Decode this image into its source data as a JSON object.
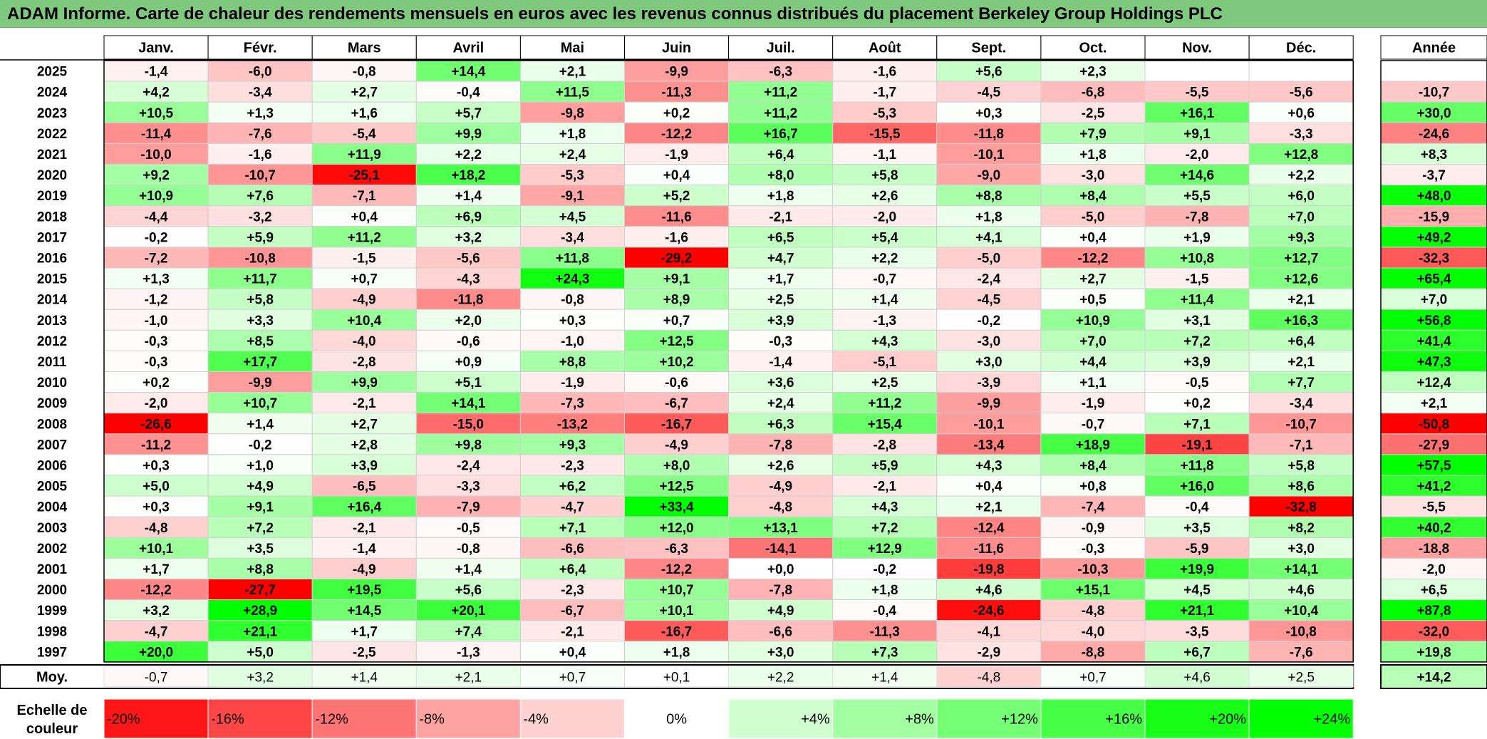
{
  "title": "ADAM Informe. Carte de chaleur des rendements mensuels en euros avec les revenus connus distribués du placement Berkeley Group Holdings PLC",
  "chart_data": {
    "type": "heatmap",
    "months": [
      "Janv.",
      "Févr.",
      "Mars",
      "Avril",
      "Mai",
      "Juin",
      "Juil.",
      "Août",
      "Sept.",
      "Oct.",
      "Nov.",
      "Déc."
    ],
    "year_label": "Année",
    "avg_label": "Moy.",
    "scale_label": "Echelle de couleur",
    "rows": [
      {
        "year": "2025",
        "values": [
          -1.4,
          -6.0,
          -0.8,
          14.4,
          2.1,
          -9.9,
          -6.3,
          -1.6,
          5.6,
          2.3,
          null,
          null
        ],
        "annual": null
      },
      {
        "year": "2024",
        "values": [
          4.2,
          -3.4,
          2.7,
          -0.4,
          11.5,
          -11.3,
          11.2,
          -1.7,
          -4.5,
          -6.8,
          -5.5,
          -5.6
        ],
        "annual": -10.7
      },
      {
        "year": "2023",
        "values": [
          10.5,
          1.3,
          1.6,
          5.7,
          -9.8,
          0.2,
          11.2,
          -5.3,
          0.3,
          -2.5,
          16.1,
          0.6
        ],
        "annual": 30.0
      },
      {
        "year": "2022",
        "values": [
          -11.4,
          -7.6,
          -5.4,
          9.9,
          1.8,
          -12.2,
          16.7,
          -15.5,
          -11.8,
          7.9,
          9.1,
          -3.3
        ],
        "annual": -24.6
      },
      {
        "year": "2021",
        "values": [
          -10.0,
          -1.6,
          11.9,
          2.2,
          2.4,
          -1.9,
          6.4,
          -1.1,
          -10.1,
          1.8,
          -2.0,
          12.8
        ],
        "annual": 8.3
      },
      {
        "year": "2020",
        "values": [
          9.2,
          -10.7,
          -25.1,
          18.2,
          -5.3,
          0.4,
          8.0,
          5.8,
          -9.0,
          -3.0,
          14.6,
          2.2
        ],
        "annual": -3.7
      },
      {
        "year": "2019",
        "values": [
          10.9,
          7.6,
          -7.1,
          1.4,
          -9.1,
          5.2,
          1.8,
          2.6,
          8.8,
          8.4,
          5.5,
          6.0
        ],
        "annual": 48.0
      },
      {
        "year": "2018",
        "values": [
          -4.4,
          -3.2,
          0.4,
          6.9,
          4.5,
          -11.6,
          -2.1,
          -2.0,
          1.8,
          -5.0,
          -7.8,
          7.0
        ],
        "annual": -15.9
      },
      {
        "year": "2017",
        "values": [
          -0.2,
          5.9,
          11.2,
          3.2,
          -3.4,
          -1.6,
          6.5,
          5.4,
          4.1,
          0.4,
          1.9,
          9.3
        ],
        "annual": 49.2
      },
      {
        "year": "2016",
        "values": [
          -7.2,
          -10.8,
          -1.5,
          -5.6,
          11.8,
          -29.2,
          4.7,
          2.2,
          -5.0,
          -12.2,
          10.8,
          12.7
        ],
        "annual": -32.3
      },
      {
        "year": "2015",
        "values": [
          1.3,
          11.7,
          0.7,
          -4.3,
          24.3,
          9.1,
          1.7,
          -0.7,
          -2.4,
          2.7,
          -1.5,
          12.6
        ],
        "annual": 65.4
      },
      {
        "year": "2014",
        "values": [
          -1.2,
          5.8,
          -4.9,
          -11.8,
          -0.8,
          8.9,
          2.5,
          1.4,
          -4.5,
          0.5,
          11.4,
          2.1
        ],
        "annual": 7.0
      },
      {
        "year": "2013",
        "values": [
          -1.0,
          3.3,
          10.4,
          2.0,
          0.3,
          0.7,
          3.9,
          -1.3,
          -0.2,
          10.9,
          3.1,
          16.3
        ],
        "annual": 56.8
      },
      {
        "year": "2012",
        "values": [
          -0.3,
          8.5,
          -4.0,
          -0.6,
          -1.0,
          12.5,
          -0.3,
          4.3,
          -3.0,
          7.0,
          7.2,
          6.4
        ],
        "annual": 41.4
      },
      {
        "year": "2011",
        "values": [
          -0.3,
          17.7,
          -2.8,
          0.9,
          8.8,
          10.2,
          -1.4,
          -5.1,
          3.0,
          4.4,
          3.9,
          2.1
        ],
        "annual": 47.3
      },
      {
        "year": "2010",
        "values": [
          0.2,
          -9.9,
          9.9,
          5.1,
          -1.9,
          -0.6,
          3.6,
          2.5,
          -3.9,
          1.1,
          -0.5,
          7.7
        ],
        "annual": 12.4
      },
      {
        "year": "2009",
        "values": [
          -2.0,
          10.7,
          -2.1,
          14.1,
          -7.3,
          -6.7,
          2.4,
          11.2,
          -9.9,
          -1.9,
          0.2,
          -3.4
        ],
        "annual": 2.1
      },
      {
        "year": "2008",
        "values": [
          -26.6,
          1.4,
          2.7,
          -15.0,
          -13.2,
          -16.7,
          6.3,
          15.4,
          -10.1,
          -0.7,
          7.1,
          -10.7
        ],
        "annual": -50.8
      },
      {
        "year": "2007",
        "values": [
          -11.2,
          -0.2,
          2.8,
          9.8,
          9.3,
          -4.9,
          -7.8,
          -2.8,
          -13.4,
          18.9,
          -19.1,
          -7.1
        ],
        "annual": -27.9
      },
      {
        "year": "2006",
        "values": [
          0.3,
          1.0,
          3.9,
          -2.4,
          -2.3,
          8.0,
          2.6,
          5.9,
          4.3,
          8.4,
          11.8,
          5.8
        ],
        "annual": 57.5
      },
      {
        "year": "2005",
        "values": [
          5.0,
          4.9,
          -6.5,
          -3.3,
          6.2,
          12.5,
          -4.9,
          -2.1,
          0.4,
          0.8,
          16.0,
          8.6
        ],
        "annual": 41.2
      },
      {
        "year": "2004",
        "values": [
          0.3,
          9.1,
          16.4,
          -7.9,
          -4.7,
          33.4,
          -4.8,
          4.3,
          2.1,
          -7.4,
          -0.4,
          -32.8
        ],
        "annual": -5.5
      },
      {
        "year": "2003",
        "values": [
          -4.8,
          7.2,
          -2.1,
          -0.5,
          7.1,
          12.0,
          13.1,
          7.2,
          -12.4,
          -0.9,
          3.5,
          8.2
        ],
        "annual": 40.2
      },
      {
        "year": "2002",
        "values": [
          10.1,
          3.5,
          -1.4,
          -0.8,
          -6.6,
          -6.3,
          -14.1,
          12.9,
          -11.6,
          -0.3,
          -5.9,
          3.0
        ],
        "annual": -18.8
      },
      {
        "year": "2001",
        "values": [
          1.7,
          8.8,
          -4.9,
          1.4,
          6.4,
          -12.2,
          0.0,
          -0.2,
          -19.8,
          -10.3,
          19.9,
          14.1
        ],
        "annual": -2.0
      },
      {
        "year": "2000",
        "values": [
          -12.2,
          -27.7,
          19.5,
          5.6,
          -2.3,
          10.7,
          -7.8,
          1.8,
          4.6,
          15.1,
          4.5,
          4.6
        ],
        "annual": 6.5
      },
      {
        "year": "1999",
        "values": [
          3.2,
          28.9,
          14.5,
          20.1,
          -6.7,
          10.1,
          4.9,
          -0.4,
          -24.6,
          -4.8,
          21.1,
          10.4
        ],
        "annual": 87.8
      },
      {
        "year": "1998",
        "values": [
          -4.7,
          21.1,
          1.7,
          7.4,
          -2.1,
          -16.7,
          -6.6,
          -11.3,
          -4.1,
          -4.0,
          -3.5,
          -10.8
        ],
        "annual": -32.0
      },
      {
        "year": "1997",
        "values": [
          20.0,
          5.0,
          -2.5,
          -1.3,
          0.4,
          1.8,
          3.0,
          7.3,
          -2.9,
          -8.8,
          6.7,
          -7.6
        ],
        "annual": 19.8
      }
    ],
    "averages": [
      -0.7,
      3.2,
      1.4,
      2.1,
      0.7,
      0.1,
      2.2,
      1.4,
      -4.8,
      0.7,
      4.6,
      2.5
    ],
    "average_annual": 14.2,
    "scale": [
      "-20%",
      "-16%",
      "-12%",
      "-8%",
      "-4%",
      "0%",
      "+4%",
      "+8%",
      "+12%",
      "+16%",
      "+20%",
      "+24%"
    ],
    "colors": {
      "negative": "#ff0000",
      "positive": "#00ff00",
      "neutral": "#ffffff"
    }
  }
}
